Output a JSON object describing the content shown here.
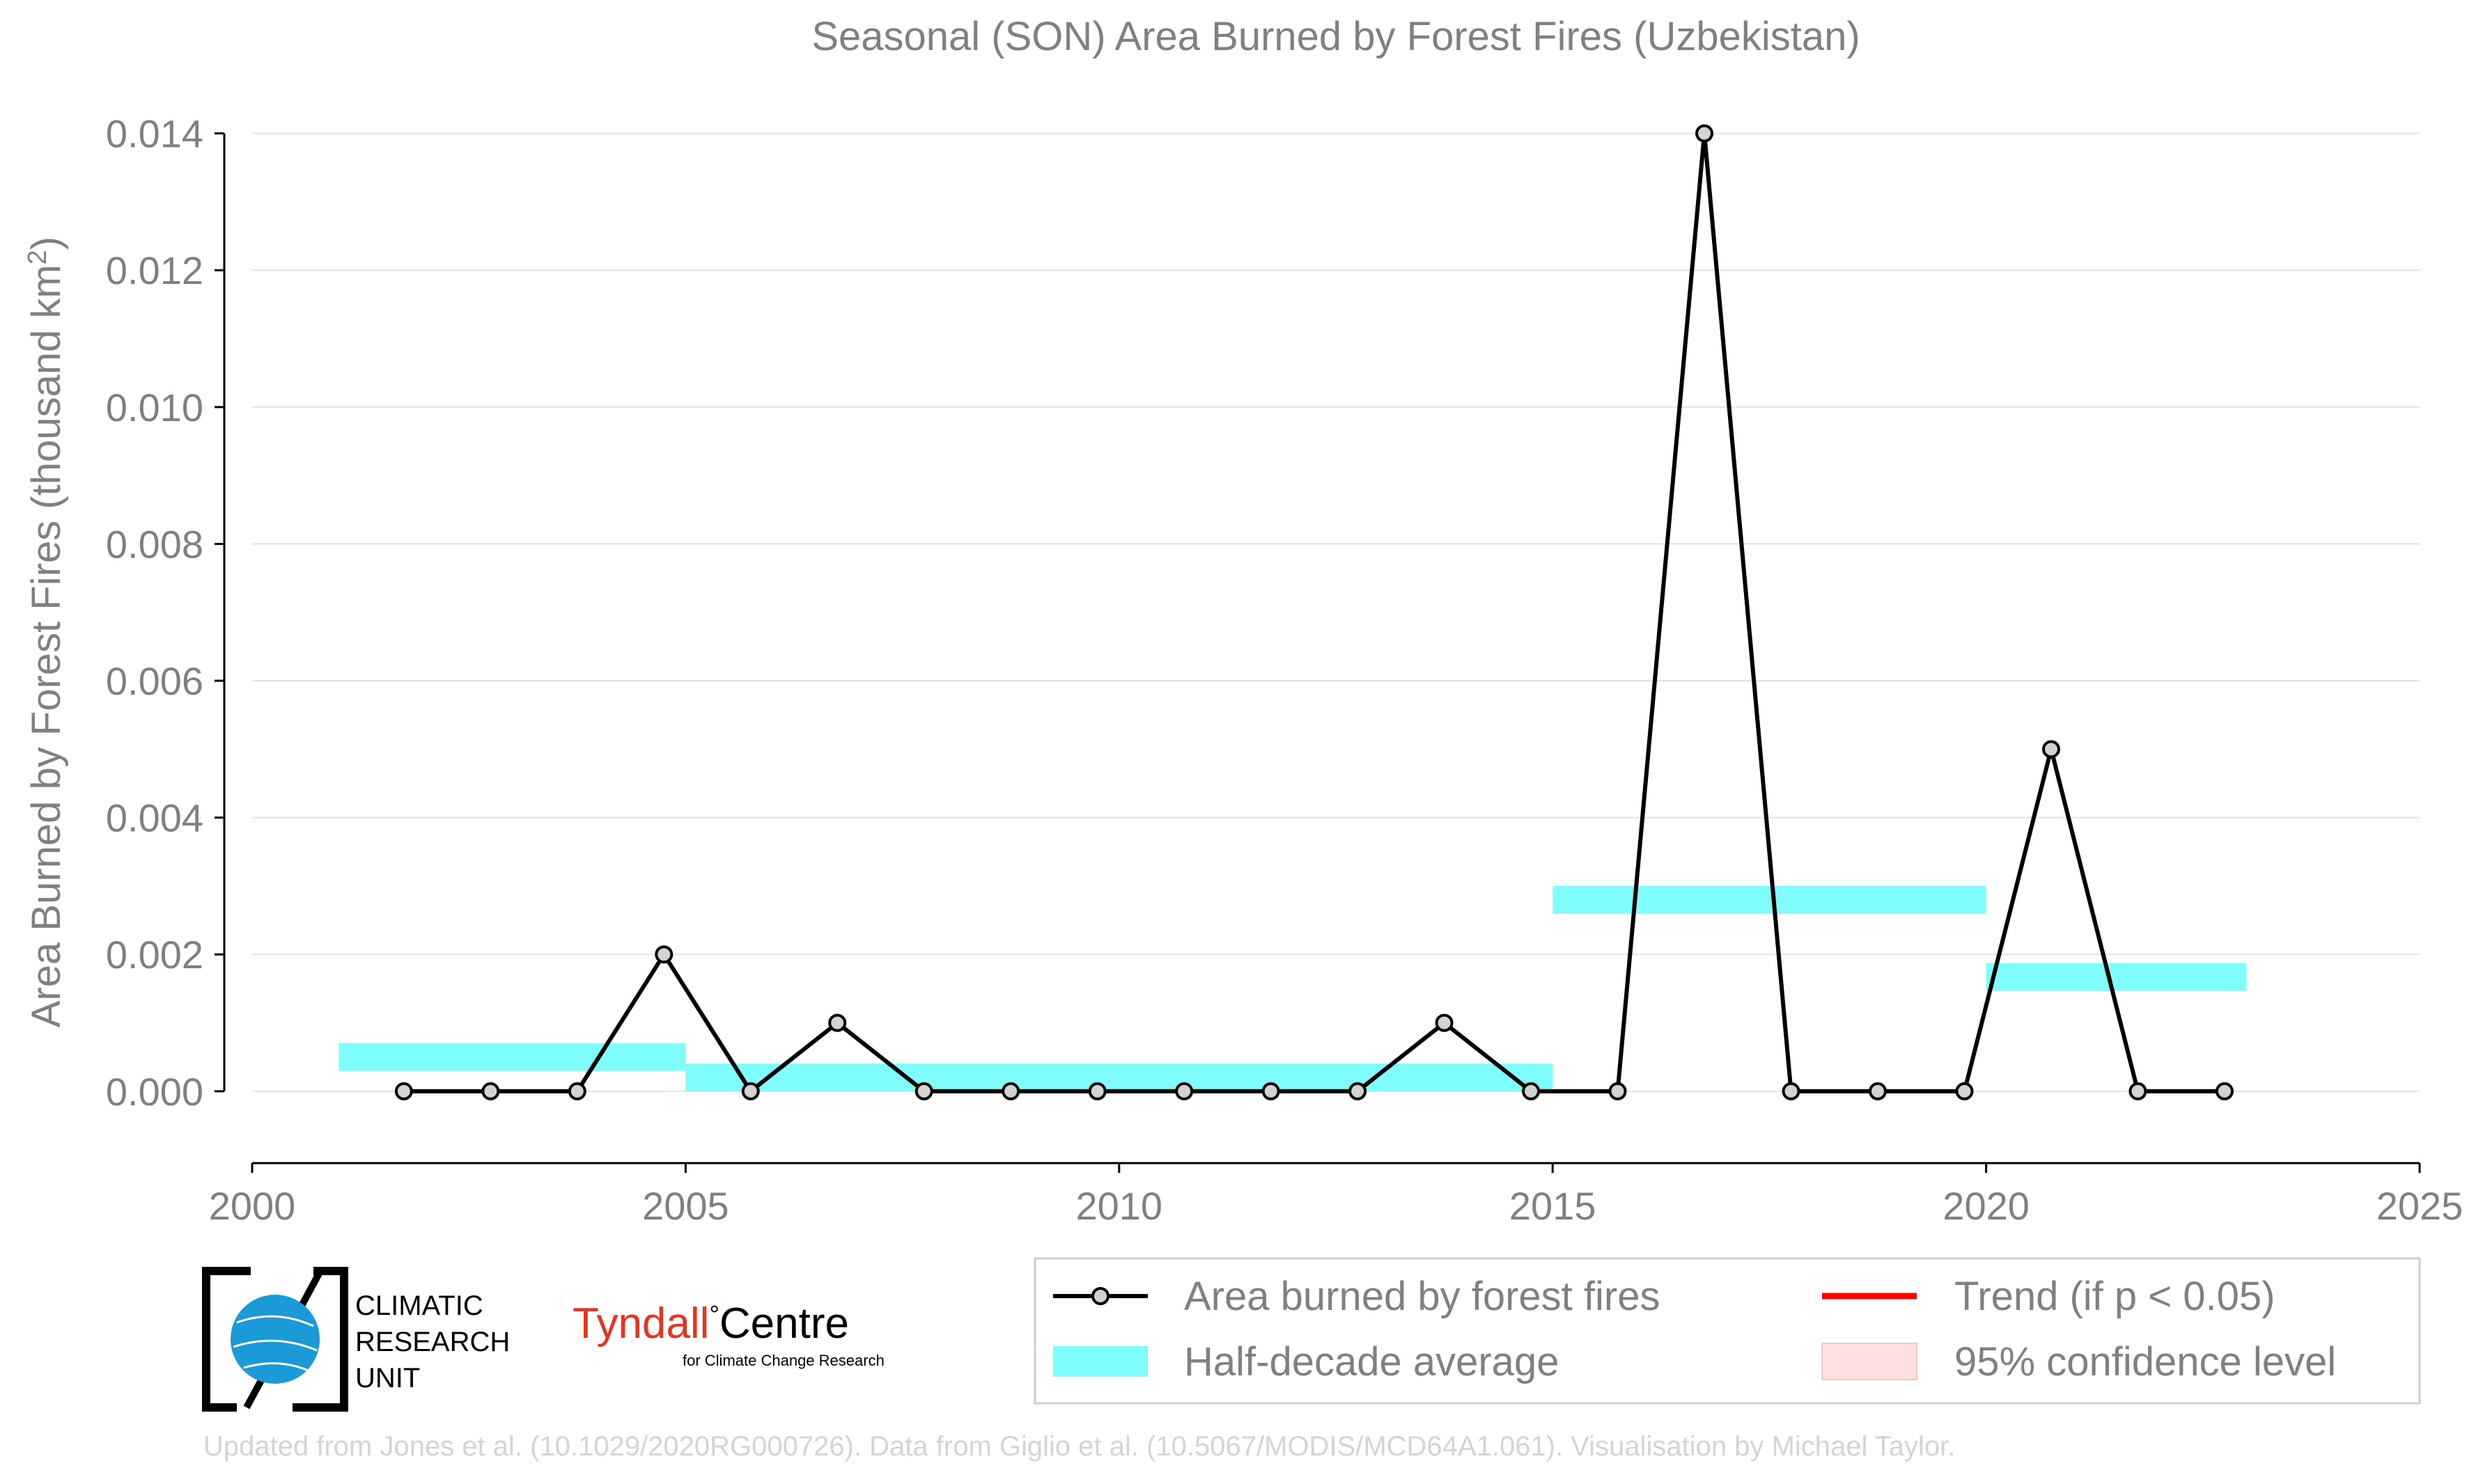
{
  "chart_data": {
    "type": "line",
    "title": "Seasonal (SON) Area Burned by Forest Fires (Uzbekistan)",
    "ylabel_prefix": "Area Burned by Forest Fires (thousand km",
    "ylabel_sup": "2",
    "ylabel_suffix": ")",
    "xlim": [
      2000,
      2025
    ],
    "ylim": [
      -0.00105,
      0.0142
    ],
    "xticks": [
      2000,
      2005,
      2010,
      2015,
      2020,
      2025
    ],
    "yticks": [
      0.0,
      0.002,
      0.004,
      0.006,
      0.008,
      0.01,
      0.012,
      0.014
    ],
    "ytick_labels": [
      "0.000",
      "0.002",
      "0.004",
      "0.006",
      "0.008",
      "0.010",
      "0.012",
      "0.014"
    ],
    "grid": "horizontal",
    "series": [
      {
        "name": "Area burned by forest fires",
        "color": "#000000",
        "marker_fill": "#d3d3d3",
        "x": [
          2001.75,
          2002.75,
          2003.75,
          2004.75,
          2005.75,
          2006.75,
          2007.75,
          2008.75,
          2009.75,
          2010.75,
          2011.75,
          2012.75,
          2013.75,
          2014.75,
          2015.75,
          2016.75,
          2017.75,
          2018.75,
          2019.75,
          2020.75,
          2021.75,
          2022.75
        ],
        "y": [
          0,
          0,
          0,
          0.002,
          0,
          0.001,
          0,
          0,
          0,
          0,
          0,
          0,
          0.001,
          0,
          0,
          0.014,
          0,
          0,
          0,
          0.005,
          0,
          0
        ]
      }
    ],
    "half_decade_average": {
      "name": "Half-decade average",
      "color": "#7ffdfd",
      "segments": [
        {
          "x_start": 2001,
          "x_end": 2005,
          "y": 0.0005
        },
        {
          "x_start": 2005,
          "x_end": 2015,
          "y": 0.0002
        },
        {
          "x_start": 2015,
          "x_end": 2020,
          "y": 0.0028
        },
        {
          "x_start": 2020,
          "x_end": 2023,
          "y": 0.00167
        }
      ]
    },
    "legend": {
      "placement": "bottom-right",
      "entries": [
        {
          "label": "Area burned by forest fires",
          "kind": "line-marker",
          "color": "#000000"
        },
        {
          "label": "Trend (if p < 0.05)",
          "kind": "line",
          "color": "#ff0000"
        },
        {
          "label": "Half-decade average",
          "kind": "band",
          "color": "#7ffdfd"
        },
        {
          "label": "95% confidence level",
          "kind": "patch",
          "color": "#ffe0e0"
        }
      ]
    }
  },
  "logos": {
    "cru_lines": [
      "CLIMATIC",
      "RESEARCH",
      "UNIT"
    ],
    "tyndall_left": "Tyndall",
    "tyndall_right": "Centre",
    "tyndall_sub": "for Climate Change Research"
  },
  "credit": "Updated from Jones et al. (10.1029/2020RG000726). Data from Giglio et al. (10.5067/MODIS/MCD64A1.061). Visualisation by Michael Taylor."
}
